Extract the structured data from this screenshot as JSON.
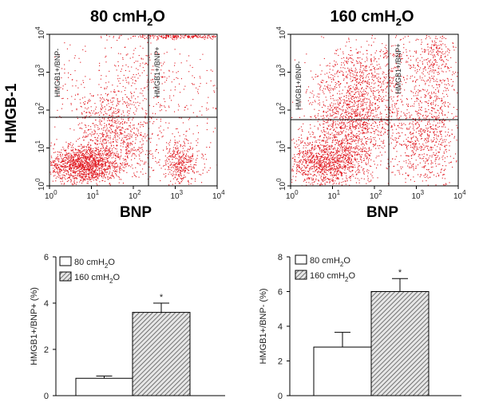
{
  "figure": {
    "flow_y_label": "HMGB-1",
    "flow_x_label": "BNP",
    "panels": [
      {
        "title_main": "80 cmH",
        "title_sub": "2",
        "title_end": "O",
        "quad_left": "HMGB1+/BNP-",
        "quad_right": "HMGB1+/BNP+"
      },
      {
        "title_main": "160 cmH",
        "title_sub": "2",
        "title_end": "O",
        "quad_left": "HMGB1+/BNP-",
        "quad_right": "HMGB1+/BNP+"
      }
    ],
    "log_ticks": {
      "base": "10",
      "exps": [
        "0",
        "1",
        "2",
        "3",
        "4"
      ]
    }
  },
  "legend": {
    "entries": [
      {
        "main": "80 cmH",
        "sub": "2",
        "end": "O"
      },
      {
        "main": "160 cmH",
        "sub": "2",
        "end": "O"
      }
    ]
  },
  "colors": {
    "dots": "#e0141c",
    "hatch": "#555555"
  },
  "chart_data": [
    {
      "type": "bar",
      "categories": [
        "80 cmH2O",
        "160 cmH2O"
      ],
      "values": [
        0.75,
        3.6
      ],
      "errors": [
        0.1,
        0.4
      ],
      "significance": [
        "",
        "*"
      ],
      "ylabel": "HMGB1+/BNP+ (%)",
      "ylim": [
        0,
        6
      ],
      "yticks": [
        "0",
        "2",
        "4",
        "6"
      ],
      "grid": false,
      "legend": "top-left"
    },
    {
      "type": "bar",
      "categories": [
        "80 cmH2O",
        "160 cmH2O"
      ],
      "values": [
        2.8,
        6.0
      ],
      "errors": [
        0.85,
        0.75
      ],
      "significance": [
        "",
        "*"
      ],
      "ylabel": "HMGB1+/BNP- (%)",
      "ylim": [
        0,
        8
      ],
      "yticks": [
        "0",
        "2",
        "4",
        "6",
        "8"
      ],
      "grid": false,
      "legend": "top-left"
    }
  ]
}
